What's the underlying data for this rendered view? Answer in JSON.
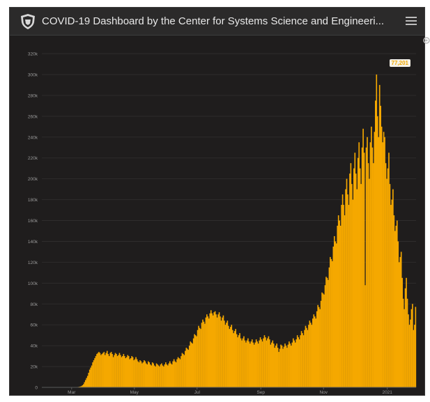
{
  "header": {
    "title": "COVID-19 Dashboard by the Center for Systems Science and Engineeri...",
    "logo_icon": "university-shield-logo-icon",
    "menu_icon": "hamburger-menu-icon"
  },
  "badge": {
    "value": "77,201"
  },
  "colors": {
    "bar": "#f5a800",
    "background": "#1f1d1d",
    "axis_text": "#9a9a9a",
    "grid": "#2f2d2d"
  },
  "chart_data": {
    "type": "bar",
    "title": "",
    "xlabel": "",
    "ylabel": "",
    "ylim": [
      0,
      320000
    ],
    "y_ticks": [
      0,
      20000,
      40000,
      60000,
      80000,
      100000,
      120000,
      140000,
      160000,
      180000,
      200000,
      220000,
      240000,
      260000,
      280000,
      300000,
      320000
    ],
    "y_tick_labels": [
      "0",
      "20k",
      "40k",
      "60k",
      "80k",
      "100k",
      "120k",
      "140k",
      "160k",
      "180k",
      "200k",
      "220k",
      "240k",
      "260k",
      "280k",
      "300k",
      "320k"
    ],
    "x_tick_labels": [
      "Mar",
      "May",
      "Jul",
      "Sep",
      "Nov",
      "2021"
    ],
    "x_tick_days": [
      29,
      90,
      151,
      213,
      274,
      336
    ],
    "start_date": "2020-02-01",
    "series": [
      {
        "values": [
          0,
          0,
          0,
          0,
          0,
          0,
          0,
          0,
          0,
          0,
          0,
          0,
          0,
          0,
          0,
          0,
          0,
          0,
          0,
          0,
          0,
          0,
          0,
          0,
          0,
          0,
          0,
          0,
          0,
          0,
          5,
          20,
          60,
          120,
          250,
          420,
          600,
          900,
          1200,
          2000,
          3000,
          5000,
          7000,
          9000,
          11000,
          14000,
          17000,
          19000,
          21000,
          24000,
          26000,
          28000,
          30000,
          32000,
          33000,
          34000,
          33000,
          31000,
          32000,
          33000,
          34000,
          31000,
          33000,
          35000,
          32000,
          30000,
          33000,
          34000,
          32000,
          29000,
          31000,
          33000,
          32000,
          30000,
          31000,
          33000,
          31000,
          29000,
          30000,
          32000,
          30000,
          28000,
          29000,
          31000,
          30000,
          27000,
          28000,
          30000,
          29000,
          26000,
          27000,
          29000,
          27000,
          25000,
          24000,
          26000,
          25000,
          23000,
          24000,
          26000,
          25000,
          23000,
          22000,
          25000,
          24000,
          22000,
          21000,
          24000,
          23000,
          21000,
          20000,
          23000,
          22000,
          21000,
          20000,
          22000,
          23000,
          21000,
          20000,
          22000,
          24000,
          22000,
          21000,
          23000,
          25000,
          23000,
          22000,
          25000,
          27000,
          25000,
          24000,
          27000,
          29000,
          28000,
          27000,
          30000,
          33000,
          32000,
          31000,
          35000,
          38000,
          37000,
          36000,
          40000,
          44000,
          43000,
          42000,
          47000,
          51000,
          50000,
          49000,
          55000,
          59000,
          57000,
          56000,
          62000,
          65000,
          63000,
          61000,
          67000,
          70000,
          68000,
          66000,
          71000,
          74000,
          71000,
          69000,
          72000,
          73000,
          70000,
          67000,
          70000,
          72000,
          68000,
          64000,
          67000,
          69000,
          64000,
          60000,
          62000,
          64000,
          59000,
          56000,
          58000,
          60000,
          55000,
          52000,
          54000,
          56000,
          51000,
          48000,
          50000,
          52000,
          47000,
          45000,
          47000,
          49000,
          45000,
          43000,
          45000,
          47000,
          44000,
          42000,
          44000,
          46000,
          43000,
          41000,
          43000,
          46000,
          44000,
          42000,
          45000,
          48000,
          46000,
          44000,
          47000,
          50000,
          48000,
          45000,
          47000,
          49000,
          46000,
          41000,
          43000,
          45000,
          42000,
          38000,
          40000,
          42000,
          38000,
          34000,
          37000,
          41000,
          40000,
          37000,
          39000,
          42000,
          40000,
          38000,
          41000,
          44000,
          42000,
          40000,
          43000,
          47000,
          45000,
          43000,
          46000,
          50000,
          48000,
          46000,
          50000,
          54000,
          52000,
          50000,
          55000,
          59000,
          57000,
          55000,
          60000,
          64000,
          62000,
          60000,
          66000,
          70000,
          68000,
          66000,
          73000,
          79000,
          77000,
          75000,
          83000,
          91000,
          90000,
          89000,
          98000,
          106000,
          105000,
          103000,
          115000,
          125000,
          123000,
          121000,
          135000,
          145000,
          140000,
          138000,
          155000,
          165000,
          160000,
          155000,
          175000,
          185000,
          175000,
          165000,
          190000,
          200000,
          185000,
          175000,
          205000,
          215000,
          195000,
          180000,
          210000,
          225000,
          205000,
          190000,
          220000,
          235000,
          210000,
          195000,
          230000,
          248000,
          225000,
          98000,
          230000,
          240000,
          215000,
          200000,
          235000,
          250000,
          230000,
          215000,
          245000,
          275000,
          300000,
          260000,
          240000,
          290000,
          270000,
          250000,
          235000,
          245000,
          240000,
          215000,
          200000,
          210000,
          225000,
          195000,
          175000,
          180000,
          190000,
          165000,
          150000,
          155000,
          160000,
          140000,
          120000,
          125000,
          130000,
          105000,
          85000,
          75000,
          95000,
          105000,
          85000,
          70000,
          60000,
          65000,
          75000,
          80000,
          55000,
          60000,
          77201
        ]
      }
    ]
  }
}
